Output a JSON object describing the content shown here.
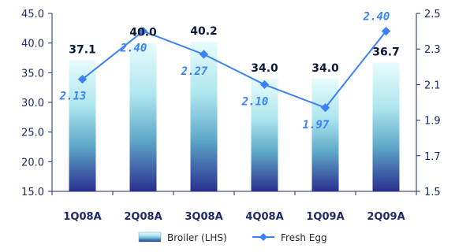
{
  "chart_data": {
    "type": "bar",
    "categories": [
      "1Q08A",
      "2Q08A",
      "3Q08A",
      "4Q08A",
      "1Q09A",
      "2Q09A"
    ],
    "series": [
      {
        "name": "Broiler (LHS)",
        "type": "bar",
        "axis": "left",
        "values": [
          37.1,
          40.0,
          40.2,
          34.0,
          34.0,
          36.7
        ],
        "labels": [
          "37.1",
          "40.0",
          "40.2",
          "34.0",
          "34.0",
          "36.7"
        ]
      },
      {
        "name": "Fresh Egg",
        "type": "line",
        "axis": "right",
        "values": [
          2.13,
          2.4,
          2.27,
          2.1,
          1.97,
          2.4
        ],
        "labels": [
          "2.13",
          "2.40",
          "2.27",
          "2.10",
          "1.97",
          "2.40"
        ]
      }
    ],
    "y_left": {
      "ylim": [
        15.0,
        45.0
      ],
      "ticks": [
        "15.0",
        "20.0",
        "25.0",
        "30.0",
        "35.0",
        "40.0",
        "45.0"
      ]
    },
    "y_right": {
      "ylim": [
        1.5,
        2.5
      ],
      "ticks": [
        "1.5",
        "1.7",
        "1.9",
        "2.1",
        "2.3",
        "2.5"
      ]
    },
    "grid": false,
    "legend_position": "bottom",
    "colors": {
      "bar_top": "#e8fbfc",
      "bar_mid": "#7fd3e0",
      "bar_bottom": "#2a2f8f",
      "line": "#3b82f6",
      "axis": "#1f2a66"
    }
  }
}
